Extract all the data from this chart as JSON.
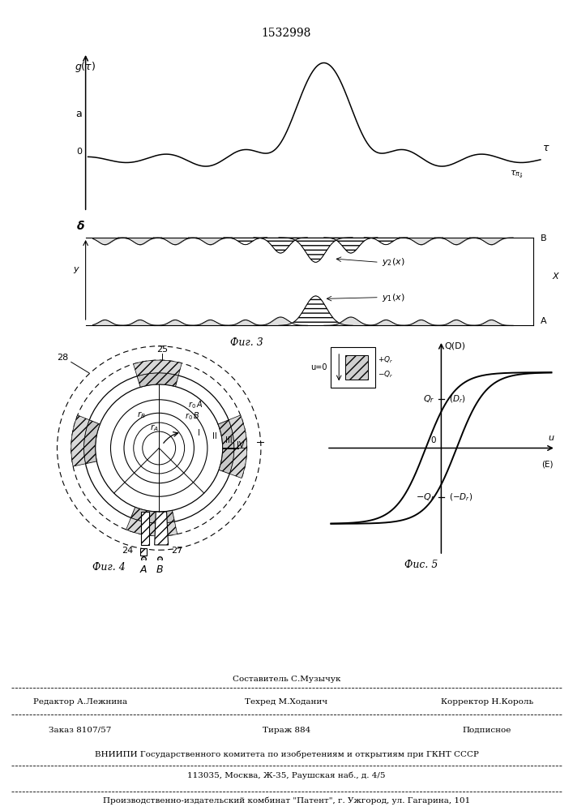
{
  "title": "1532998",
  "fig3_label": "Фиг. 3",
  "fig4_label": "Фиг. 4",
  "fig5_label": "Фис. 5",
  "footer_line1": "Составитель С.Музычук",
  "footer_line2a": "Редактор А.Лежнина",
  "footer_line2b": "Техред М.Ходанич",
  "footer_line2c": "Корректор Н.Король",
  "footer_line3a": "Заказ 8107/57",
  "footer_line3b": "Тираж 884",
  "footer_line3c": "Подписное",
  "footer_line4": "ВНИИПИ Государственного комитета по изобретениям и открытиям при ГКНТ СССР",
  "footer_line5": "113035, Москва, Ж-35, Раушская наб., д. 4/5",
  "footer_line6": "Производственно-издательский комбинат \"Патент\", г. Ужгород, ул. Гагарина, 101",
  "bg": "#ffffff"
}
